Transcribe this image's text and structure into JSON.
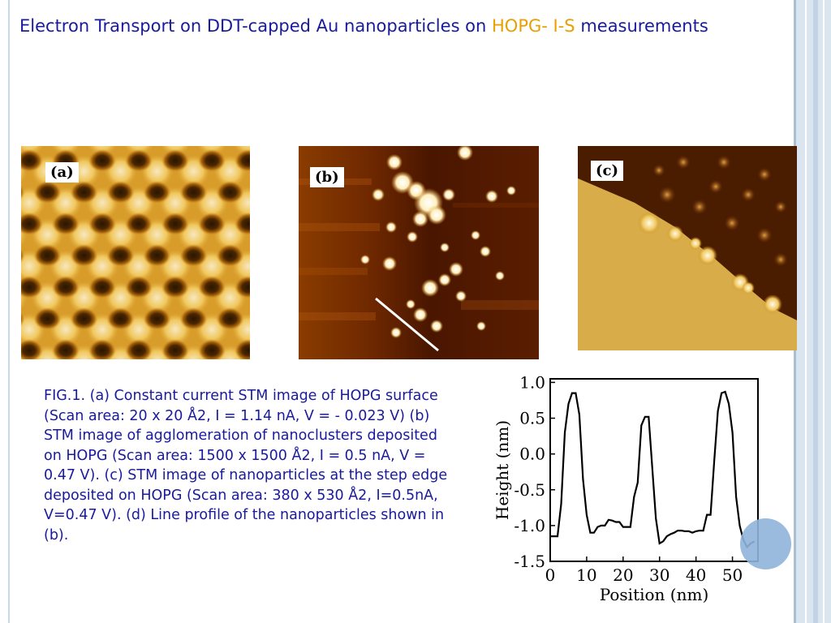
{
  "slide": {
    "title_main": "Electron Transport on DDT-capped Au nanoparticles on ",
    "title_highlight": "HOPG- I-S",
    "title_end": " measurements"
  },
  "panels": [
    {
      "label": "(a)",
      "icon": "stm-hexagonal-lattice-image"
    },
    {
      "label": "(b)",
      "icon": "stm-nanocluster-image"
    },
    {
      "label": "(c)",
      "icon": "stm-step-edge-image"
    }
  ],
  "caption": "FIG.1. (a) Constant current STM image of HOPG surface (Scan area: 20 x 20 Å2, I = 1.14 nA, V = - 0.023 V) (b) STM image of agglomeration of nanoclusters deposited on HOPG (Scan area: 1500 x 1500 Å2, I = 0.5 nA, V = 0.47 V). (c) STM image of nanoparticles at the step edge deposited on HOPG (Scan area: 380 x 530 Å2, I=0.5nA, V=0.47 V). (d) Line profile of the nanoparticles shown in (b).",
  "chart_data": {
    "type": "line",
    "xlabel": "Position (nm)",
    "ylabel": "Height (nm)",
    "xlim": [
      0,
      57
    ],
    "ylim": [
      -1.5,
      1.05
    ],
    "xticks": [
      "0",
      "10",
      "20",
      "30",
      "40",
      "50"
    ],
    "yticks": [
      "1.0",
      "0.5",
      "0.0",
      "-0.5",
      "-1.0",
      "-1.5"
    ],
    "xtick_values": [
      0,
      10,
      20,
      30,
      40,
      50
    ],
    "ytick_values": [
      1.0,
      0.5,
      0.0,
      -0.5,
      -1.0,
      -1.5
    ],
    "series": [
      {
        "x": [
          0,
          2,
          3,
          4,
          5,
          6,
          7,
          8,
          9,
          10,
          11,
          12,
          13,
          14,
          15,
          16,
          17,
          18,
          19,
          20,
          21,
          22,
          23,
          24,
          25,
          26,
          27,
          28,
          29,
          30,
          31,
          32,
          33,
          34,
          35,
          36,
          37,
          38,
          39,
          40,
          41,
          42,
          43,
          44,
          45,
          46,
          47,
          48,
          49,
          50,
          51,
          52,
          53,
          54,
          55,
          56
        ],
        "y": [
          -1.15,
          -1.15,
          -0.7,
          0.3,
          0.7,
          0.85,
          0.85,
          0.55,
          -0.35,
          -0.85,
          -1.1,
          -1.1,
          -1.02,
          -1.0,
          -1.0,
          -0.92,
          -0.93,
          -0.95,
          -0.95,
          -1.02,
          -1.02,
          -1.02,
          -0.6,
          -0.4,
          0.4,
          0.52,
          0.52,
          -0.2,
          -0.9,
          -1.25,
          -1.22,
          -1.15,
          -1.12,
          -1.1,
          -1.07,
          -1.07,
          -1.08,
          -1.08,
          -1.1,
          -1.08,
          -1.07,
          -1.07,
          -0.85,
          -0.85,
          -0.1,
          0.6,
          0.85,
          0.87,
          0.7,
          0.3,
          -0.6,
          -1.0,
          -1.2,
          -1.3,
          -1.25,
          -1.22
        ]
      }
    ]
  }
}
